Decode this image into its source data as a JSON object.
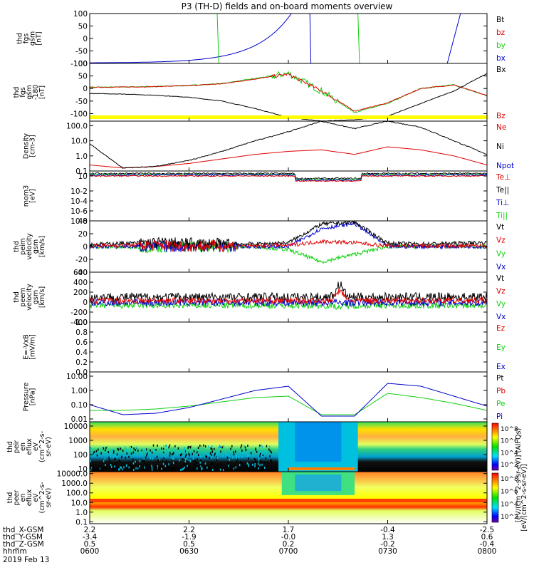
{
  "title": "P3 (TH-D) fields and on-board moments overview",
  "colors": {
    "black": "#000000",
    "red": "#e00000",
    "green": "#10d010",
    "blue": "#0000cc",
    "yellow": "#ffff00"
  },
  "panels": [
    {
      "id": "fgs1",
      "ylabel": [
        "thd",
        "fgs",
        "gsm",
        "[nT]"
      ],
      "ticks": [
        "100",
        "50",
        "0",
        "-50",
        "-100"
      ],
      "tickvals": [
        100,
        50,
        0,
        -50,
        -100
      ],
      "ylim": [
        -100,
        100
      ],
      "legend": [
        {
          "text": "Bt",
          "color": "black"
        },
        {
          "text": "bz",
          "color": "red"
        },
        {
          "text": "by",
          "color": "green"
        },
        {
          "text": "bx",
          "color": "blue"
        }
      ]
    },
    {
      "id": "fgs2",
      "ylabel": [
        "thd",
        "fgs",
        "gsm",
        "-180",
        "[nT]"
      ],
      "ticks": [
        "100",
        "50",
        "0",
        "-50",
        "-100"
      ],
      "tickvals": [
        100,
        50,
        0,
        -50,
        -100
      ],
      "ylim": [
        -130,
        100
      ],
      "legend": [
        {
          "text": "Bx",
          "color": "black"
        },
        {
          "text": "Bz",
          "color": "red"
        }
      ]
    },
    {
      "id": "density",
      "ylabel": [
        "Density",
        "[cm-3]"
      ],
      "ticks": [
        "100.0",
        "10.0",
        "1.0",
        "0.1"
      ],
      "tickvals": [
        2,
        1,
        0,
        -1
      ],
      "ylim": [
        -1,
        2.3
      ],
      "legend": [
        {
          "text": "Ne",
          "color": "red"
        },
        {
          "text": "Ni",
          "color": "black"
        },
        {
          "text": "Npot",
          "color": "blue"
        }
      ]
    },
    {
      "id": "temp",
      "ylabel": [
        "mom3",
        "[eV]"
      ],
      "ticks": [
        "10",
        "10-2",
        "10-4",
        "10-6",
        "10-8"
      ],
      "tickvals": [
        1,
        -2,
        -4,
        -6,
        -8
      ],
      "ylim": [
        -8,
        2
      ],
      "legend": [
        {
          "text": "Te⊥",
          "color": "red"
        },
        {
          "text": "Te||",
          "color": "black"
        },
        {
          "text": "Ti⊥",
          "color": "blue"
        },
        {
          "text": "Ti||",
          "color": "green"
        }
      ]
    },
    {
      "id": "vi",
      "ylabel": [
        "thd",
        "peim",
        "velocity",
        "gsm",
        "[km/s]"
      ],
      "ticks": [
        "40",
        "20",
        "0",
        "-20",
        "-40"
      ],
      "tickvals": [
        40,
        20,
        0,
        -20,
        -40
      ],
      "ylim": [
        -40,
        40
      ],
      "legend": [
        {
          "text": "Vt",
          "color": "black"
        },
        {
          "text": "Vz",
          "color": "red"
        },
        {
          "text": "Vy",
          "color": "green"
        },
        {
          "text": "Vx",
          "color": "blue"
        }
      ]
    },
    {
      "id": "ve",
      "ylabel": [
        "thd",
        "peem",
        "velocity",
        "gsm",
        "[km/s]"
      ],
      "ticks": [
        "600",
        "400",
        "200",
        "0",
        "-200",
        "-400"
      ],
      "tickvals": [
        600,
        400,
        200,
        0,
        -200,
        -400
      ],
      "ylim": [
        -400,
        600
      ],
      "legend": [
        {
          "text": "Vt",
          "color": "black"
        },
        {
          "text": "Vz",
          "color": "red"
        },
        {
          "text": "Vy",
          "color": "green"
        },
        {
          "text": "Vx",
          "color": "blue"
        }
      ]
    },
    {
      "id": "efield",
      "ylabel": [
        "E=-VxB",
        "[mV/m]"
      ],
      "ticks": [
        "1.0",
        "0.8",
        "0.6",
        "0.4",
        "0.2",
        "0.0"
      ],
      "tickvals": [
        1,
        0.8,
        0.6,
        0.4,
        0.2,
        0
      ],
      "ylim": [
        0,
        1
      ],
      "legend": [
        {
          "text": "Ez",
          "color": "red"
        },
        {
          "text": "Ey",
          "color": "green"
        },
        {
          "text": "Ex",
          "color": "blue"
        }
      ]
    },
    {
      "id": "pressure",
      "ylabel": [
        "Pressure",
        "[nPa]"
      ],
      "ticks": [
        "10.00",
        "1.00",
        "0.10",
        "0.01"
      ],
      "tickvals": [
        1,
        0,
        -1,
        -2
      ],
      "ylim": [
        -2.2,
        1.3
      ],
      "legend": [
        {
          "text": "Pt",
          "color": "black"
        },
        {
          "text": "Pb",
          "color": "red"
        },
        {
          "text": "Pe",
          "color": "green"
        },
        {
          "text": "Pi",
          "color": "blue"
        }
      ]
    },
    {
      "id": "spec_i",
      "ylabel": [
        "thd",
        "peir",
        "en",
        "eflux",
        "eV",
        "(cm^2-s-",
        "sr-eV)"
      ],
      "ticks": [
        "10000",
        "1000",
        "100",
        "10"
      ],
      "tickvals": [
        4,
        3,
        2,
        1
      ],
      "ylim": [
        0.8,
        4.3
      ],
      "legend": []
    },
    {
      "id": "spec_e",
      "ylabel": [
        "thd",
        "peer",
        "en",
        "eflux",
        "eV",
        "(cm^2-s-",
        "sr-eV)"
      ],
      "ticks": [
        "10000.0",
        "1000.0",
        "100.0",
        "10.0",
        "1.0",
        "0.1"
      ],
      "tickvals": [
        4,
        3,
        2,
        1,
        0,
        -1
      ],
      "ylim": [
        -1.2,
        4.2
      ],
      "legend": []
    }
  ],
  "colorbar": {
    "label1": "[eV/(cm^2-s-sr-eV)] (All Qs)",
    "label2": "[eV/(cm^2-s-sr-eV)]",
    "ticks1": [
      "10^8",
      "10^6",
      "10^4",
      "10^2"
    ],
    "ticks2": [
      "10^8",
      "10^6",
      "10^4",
      "10^2"
    ]
  },
  "xaxis": {
    "rows": [
      {
        "label": "thd_X-GSM",
        "values": [
          "2.2",
          "2.2",
          "1.7",
          "-0.4",
          "-2.5"
        ]
      },
      {
        "label": "thd_Y-GSM",
        "values": [
          "-3.4",
          "-1.9",
          "-0.0",
          "1.3",
          "0.6"
        ]
      },
      {
        "label": "thd_Z-GSM",
        "values": [
          "0.5",
          "0.5",
          "0.2",
          "-0.2",
          "-0.4"
        ]
      },
      {
        "label": "hhmm",
        "values": [
          "0600",
          "0630",
          "0700",
          "0730",
          "0800"
        ]
      }
    ],
    "date": "2019 Feb 13",
    "tick_minutes": [
      0,
      30,
      60,
      90,
      120
    ],
    "range_minutes": [
      0,
      120
    ]
  },
  "chart_data": {
    "type": "line",
    "title": "P3 (TH-D) fields and on-board moments overview",
    "x_time_minutes_since_0600": [
      0,
      10,
      20,
      30,
      40,
      50,
      60,
      70,
      80,
      90,
      100,
      110,
      120
    ],
    "panels": [
      {
        "id": "fgs2",
        "series": [
          {
            "name": "Bx",
            "values": [
              -20,
              -22,
              -27,
              -35,
              -50,
              -80,
              -115,
              -130,
              -125,
              -110,
              -60,
              -10,
              60
            ]
          },
          {
            "name": "Bz",
            "values": [
              5,
              6,
              8,
              12,
              20,
              40,
              60,
              -10,
              -95,
              -60,
              0,
              15,
              -30
            ]
          }
        ]
      },
      {
        "id": "density",
        "series": [
          {
            "name": "Ni",
            "values": [
              0.8,
              -0.8,
              -0.7,
              -0.3,
              0.3,
              1.0,
              1.6,
              2.3,
              1.8,
              2.3,
              1.9,
              1.0,
              0.1
            ]
          },
          {
            "name": "Ne",
            "values": [
              -0.6,
              -0.8,
              -0.7,
              -0.5,
              -0.2,
              0.1,
              0.3,
              0.4,
              0.1,
              0.6,
              0.4,
              0.0,
              -0.6
            ]
          }
        ]
      },
      {
        "id": "vi",
        "series": [
          {
            "name": "Vt",
            "values": [
              3,
              5,
              6,
              5,
              4,
              4,
              6,
              35,
              38,
              5,
              4,
              5,
              6
            ]
          },
          {
            "name": "Vx",
            "values": [
              0,
              0,
              0,
              0,
              0,
              0,
              0,
              28,
              36,
              0,
              0,
              0,
              0
            ]
          },
          {
            "name": "Vy",
            "values": [
              0,
              -1,
              -1,
              0,
              0,
              0,
              -5,
              -24,
              -12,
              0,
              0,
              0,
              0
            ]
          },
          {
            "name": "Vz",
            "values": [
              1,
              2,
              2,
              1,
              1,
              1,
              2,
              8,
              6,
              1,
              1,
              1,
              1
            ]
          }
        ]
      },
      {
        "id": "pressure",
        "series": [
          {
            "name": "Pi",
            "values": [
              -1.0,
              -1.7,
              -1.6,
              -1.2,
              -0.6,
              0.0,
              0.3,
              -1.8,
              -1.8,
              0.5,
              0.3,
              -0.4,
              -1.1
            ]
          },
          {
            "name": "Pe",
            "values": [
              -1.4,
              -1.4,
              -1.3,
              -1.1,
              -0.8,
              -0.5,
              -0.4,
              -1.7,
              -1.7,
              -0.2,
              -0.5,
              -0.9,
              -1.4
            ]
          }
        ]
      }
    ]
  }
}
